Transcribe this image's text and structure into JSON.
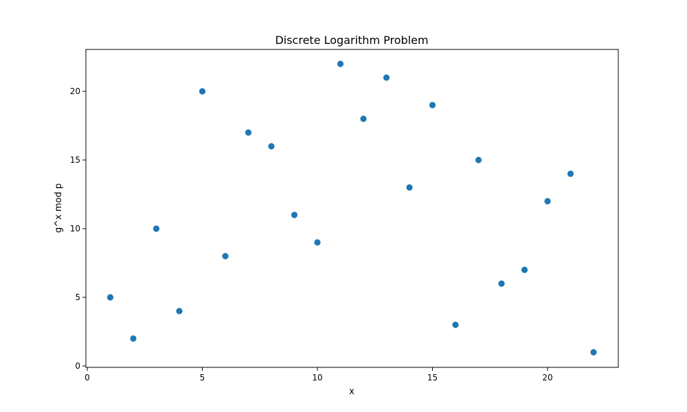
{
  "chart_data": {
    "type": "scatter",
    "title": "Discrete Logarithm Problem",
    "xlabel": "x",
    "ylabel": "g^x mod p",
    "xlim": [
      0,
      23
    ],
    "ylim": [
      0,
      23
    ],
    "x_ticks": [
      0,
      5,
      10,
      15,
      20
    ],
    "y_ticks": [
      0,
      5,
      10,
      15,
      20
    ],
    "grid": false,
    "marker_color": "#1f77b4",
    "series": [
      {
        "x": [
          1,
          2,
          3,
          4,
          5,
          6,
          7,
          8,
          9,
          10,
          11,
          12,
          13,
          14,
          15,
          16,
          17,
          18,
          19,
          20,
          21,
          22
        ],
        "y": [
          5,
          2,
          10,
          4,
          20,
          8,
          17,
          16,
          11,
          9,
          22,
          18,
          21,
          13,
          19,
          3,
          15,
          6,
          7,
          12,
          14,
          1
        ]
      }
    ]
  }
}
